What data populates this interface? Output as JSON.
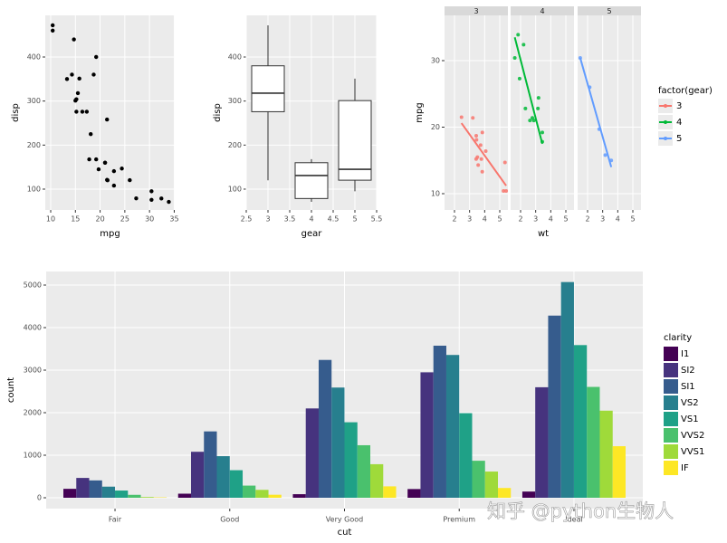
{
  "chart_data": [
    {
      "type": "scatter",
      "x_label": "mpg",
      "y_label": "disp",
      "x": [
        21,
        21,
        22.8,
        21.4,
        18.7,
        18.1,
        14.3,
        24.4,
        22.8,
        19.2,
        17.8,
        16.4,
        17.3,
        15.2,
        10.4,
        10.4,
        14.7,
        32.4,
        30.4,
        33.9,
        21.5,
        15.5,
        15.2,
        13.3,
        19.2,
        27.3,
        26,
        30.4,
        15.8,
        19.7,
        15,
        21.4
      ],
      "values": [
        160,
        160,
        108,
        258,
        360,
        225,
        360,
        146.7,
        140.8,
        167.6,
        167.6,
        275.8,
        275.8,
        275.8,
        472,
        460,
        440,
        78.7,
        75.7,
        71.1,
        120.1,
        318,
        304,
        350,
        400,
        79,
        120.3,
        95.1,
        351,
        145,
        301,
        121
      ],
      "color": "#000000",
      "xlim": [
        8.9,
        35.1
      ],
      "xticks": [
        10,
        15,
        20,
        25,
        30,
        35
      ],
      "ylim": [
        52.7,
        494.5
      ],
      "yticks": [
        100,
        200,
        300,
        400
      ]
    },
    {
      "type": "boxplot",
      "x_label": "gear",
      "y_label": "disp",
      "x": [
        3,
        4,
        5
      ],
      "min": [
        120.1,
        71.1,
        95.1
      ],
      "q1": [
        275.8,
        78.7,
        120.3
      ],
      "median": [
        318,
        130.9,
        145
      ],
      "q3": [
        380,
        160,
        301
      ],
      "max": [
        472,
        168,
        351
      ],
      "xlim": [
        2.5,
        5.5
      ],
      "xticks": [
        2.5,
        3,
        3.5,
        4,
        4.5,
        5,
        5.5
      ],
      "ylim": [
        52.7,
        494.5
      ],
      "yticks": [
        100,
        200,
        300,
        400
      ]
    },
    {
      "type": "facet_scatter",
      "x_label": "wt",
      "y_label": "mpg",
      "legend_title": "factor(gear)",
      "xlim": [
        1.34,
        5.54
      ],
      "xticks": [
        2,
        3,
        4,
        5
      ],
      "ylim": [
        7.55,
        36.8
      ],
      "yticks": [
        10,
        20,
        30
      ],
      "series": [
        {
          "name": "3",
          "color": "#F8766D",
          "x": [
            3.215,
            3.44,
            3.46,
            3.57,
            4.07,
            3.73,
            3.78,
            5.25,
            5.424,
            5.345,
            2.465,
            3.52,
            3.435,
            3.84,
            3.845
          ],
          "values": [
            21.4,
            18.7,
            18.1,
            14.3,
            16.4,
            17.3,
            15.2,
            10.4,
            10.4,
            14.7,
            21.5,
            15.5,
            15.2,
            13.3,
            19.2
          ],
          "fit_x": [
            2.465,
            5.424
          ],
          "fit_y": [
            20.6,
            11.2
          ]
        },
        {
          "name": "4",
          "color": "#00BA38",
          "x": [
            2.62,
            2.875,
            2.32,
            3.19,
            3.15,
            3.44,
            3.44,
            2.2,
            1.615,
            1.835,
            1.935,
            2.78
          ],
          "values": [
            21,
            21,
            22.8,
            24.4,
            22.8,
            19.2,
            17.8,
            32.4,
            30.4,
            33.9,
            27.3,
            21.4
          ],
          "fit_x": [
            1.615,
            3.44
          ],
          "fit_y": [
            33.5,
            17.5
          ]
        },
        {
          "name": "5",
          "color": "#619CFF",
          "x": [
            2.14,
            1.513,
            3.17,
            2.77,
            3.57
          ],
          "values": [
            26,
            30.4,
            15.8,
            19.7,
            15
          ],
          "fit_x": [
            1.513,
            3.57
          ],
          "fit_y": [
            30.4,
            14.0
          ]
        }
      ]
    },
    {
      "type": "bar",
      "x_label": "cut",
      "y_label": "count",
      "legend_title": "clarity",
      "categories": [
        "Fair",
        "Good",
        "Very Good",
        "Premium",
        "Ideal"
      ],
      "ylim": [
        -255,
        5319
      ],
      "yticks": [
        0,
        1000,
        2000,
        3000,
        4000,
        5000
      ],
      "series": [
        {
          "name": "I1",
          "color": "#440154",
          "values": [
            210,
            96,
            84,
            205,
            146
          ]
        },
        {
          "name": "SI2",
          "color": "#46337E",
          "values": [
            466,
            1081,
            2100,
            2949,
            2598
          ]
        },
        {
          "name": "SI1",
          "color": "#365C8D",
          "values": [
            408,
            1560,
            3240,
            3575,
            4282
          ]
        },
        {
          "name": "VS2",
          "color": "#277F8E",
          "values": [
            261,
            978,
            2591,
            3357,
            5071
          ]
        },
        {
          "name": "VS1",
          "color": "#1FA187",
          "values": [
            170,
            648,
            1775,
            1989,
            3589
          ]
        },
        {
          "name": "VVS2",
          "color": "#4AC16D",
          "values": [
            69,
            286,
            1235,
            870,
            2606
          ]
        },
        {
          "name": "VVS1",
          "color": "#9FDA3A",
          "values": [
            17,
            186,
            789,
            616,
            2047
          ]
        },
        {
          "name": "IF",
          "color": "#FDE725",
          "values": [
            9,
            71,
            268,
            230,
            1212
          ]
        }
      ]
    }
  ],
  "watermark": "知乎 @python生物人"
}
